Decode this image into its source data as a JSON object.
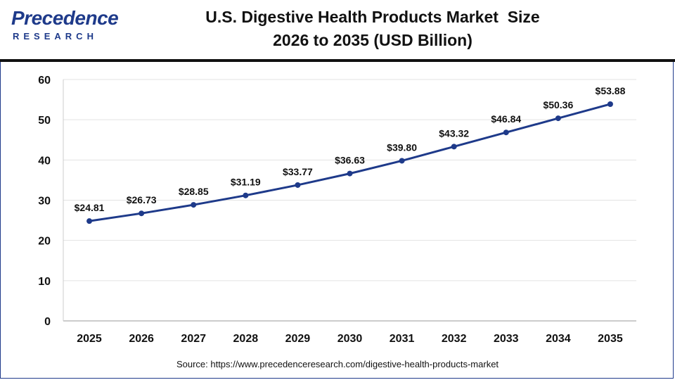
{
  "header": {
    "brand_name": "Precedence",
    "brand_sub": "RESEARCH",
    "title_line1": "U.S. Digestive Health Products Market  Size",
    "title_line2": "2026 to 2035 (USD Billion)"
  },
  "footer": {
    "source": "Source: https://www.precedenceresearch.com/digestive-health-products-market"
  },
  "colors": {
    "series": "#1e3a8a",
    "brand": "#1e3a8a"
  },
  "chart_data": {
    "type": "line",
    "categories": [
      "2025",
      "2026",
      "2027",
      "2028",
      "2029",
      "2030",
      "2031",
      "2032",
      "2033",
      "2034",
      "2035"
    ],
    "series": [
      {
        "values": [
          24.81,
          26.73,
          28.85,
          31.19,
          33.77,
          36.63,
          39.8,
          43.32,
          46.84,
          50.36,
          53.88
        ],
        "labels": [
          "$24.81",
          "$26.73",
          "$28.85",
          "$31.19",
          "$33.77",
          "$36.63",
          "$39.80",
          "$43.32",
          "$46.84",
          "$50.36",
          "$53.88"
        ]
      }
    ],
    "ylim": [
      0,
      60
    ],
    "yticks": [
      "0",
      "10",
      "20",
      "30",
      "40",
      "50",
      "60"
    ],
    "grid": "horizontal",
    "xlabel": "",
    "ylabel": ""
  }
}
